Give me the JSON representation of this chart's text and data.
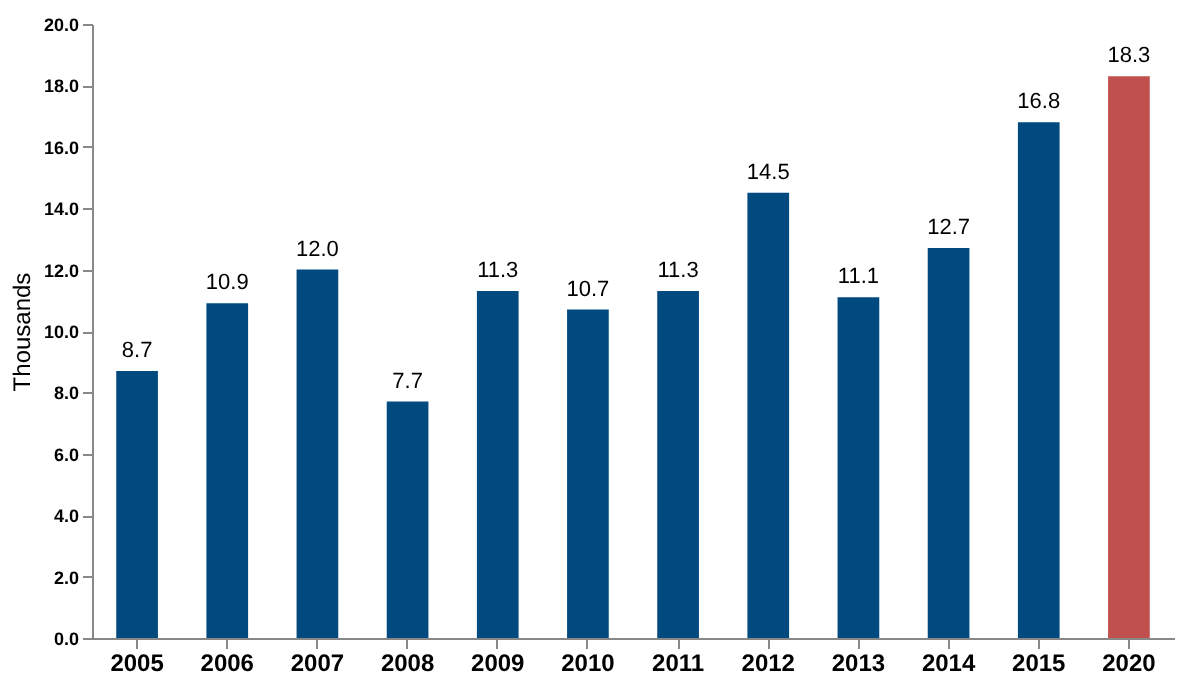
{
  "chart_data": {
    "type": "bar",
    "ylabel": "Thousands",
    "categories": [
      "2005",
      "2006",
      "2007",
      "2008",
      "2009",
      "2010",
      "2011",
      "2012",
      "2013",
      "2014",
      "2015",
      "2020"
    ],
    "values": [
      8.7,
      10.9,
      12.0,
      7.7,
      11.3,
      10.7,
      11.3,
      14.5,
      11.1,
      12.7,
      16.8,
      18.3
    ],
    "colors": [
      "#004a80",
      "#004a80",
      "#004a80",
      "#004a80",
      "#004a80",
      "#004a80",
      "#004a80",
      "#004a80",
      "#004a80",
      "#004a80",
      "#004a80",
      "#c0504d"
    ],
    "value_labels": [
      "8.7",
      "10.9",
      "12.0",
      "7.7",
      "11.3",
      "10.7",
      "11.3",
      "14.5",
      "11.1",
      "12.7",
      "16.8",
      "18.3"
    ],
    "ylim": [
      0,
      20
    ],
    "yticks": [
      {
        "value": 0,
        "label": "0.0"
      },
      {
        "value": 2,
        "label": "2.0"
      },
      {
        "value": 4,
        "label": "4.0"
      },
      {
        "value": 6,
        "label": "6.0"
      },
      {
        "value": 8,
        "label": "8.0"
      },
      {
        "value": 10,
        "label": "10.0"
      },
      {
        "value": 12,
        "label": "12.0"
      },
      {
        "value": 14,
        "label": "14.0"
      },
      {
        "value": 16,
        "label": "16.0"
      },
      {
        "value": 18,
        "label": "18.0"
      },
      {
        "value": 20,
        "label": "20.0"
      }
    ],
    "grid": false
  }
}
